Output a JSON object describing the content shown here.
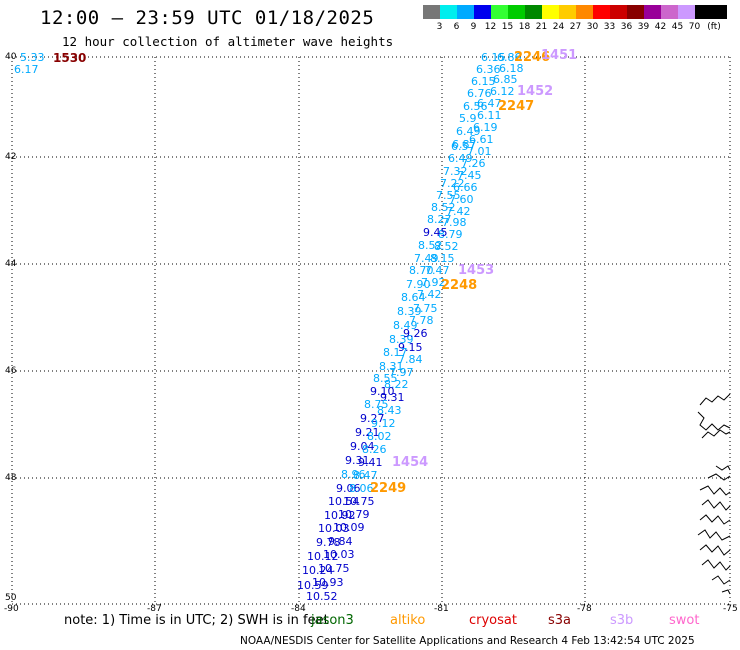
{
  "header": {
    "title": "12:00 — 23:59 UTC 01/18/2025",
    "subtitle": "12 hour collection of altimeter wave heights"
  },
  "color_scale": {
    "colors": [
      "#777777",
      "#00eeee",
      "#00aaff",
      "#0000ee",
      "#33ff33",
      "#00cc00",
      "#008800",
      "#ffff00",
      "#ffcc00",
      "#ff8800",
      "#ff0000",
      "#cc0000",
      "#880000",
      "#990099",
      "#cc66cc",
      "#cc99ff",
      "#000000"
    ],
    "labels": [
      "3",
      "6",
      "9",
      "12",
      "15",
      "18",
      "21",
      "24",
      "27",
      "30",
      "33",
      "36",
      "39",
      "42",
      "45",
      "70",
      "(ft)"
    ]
  },
  "axes": {
    "lat_labels": [
      "40",
      "42",
      "44",
      "46",
      "48",
      "50"
    ],
    "lon_labels": [
      "-90",
      "-87",
      "-84",
      "-81",
      "-78",
      "-75"
    ]
  },
  "note": "note:  1) Time is in UTC; 2) SWH is in feet",
  "satellites": [
    {
      "name": "jason3",
      "color": "#006600"
    },
    {
      "name": "altiko",
      "color": "#ff9900"
    },
    {
      "name": "cryosat",
      "color": "#dd0000"
    },
    {
      "name": "s3a",
      "color": "#880000"
    },
    {
      "name": "s3b",
      "color": "#cc99ff"
    },
    {
      "name": "swot",
      "color": "#ff66cc"
    }
  ],
  "credit": "NOAA/NESDIS Center for Satellite Applications and Research    4 Feb 13:42:54 UTC 2025",
  "time_labels": [
    {
      "text": "1530",
      "color": "#880000"
    },
    {
      "text": "2246",
      "color": "#ff9900"
    },
    {
      "text": "1451",
      "color": "#cc99ff"
    },
    {
      "text": "1452",
      "color": "#cc99ff"
    },
    {
      "text": "2247",
      "color": "#ff9900"
    },
    {
      "text": "1453",
      "color": "#cc99ff"
    },
    {
      "text": "2248",
      "color": "#ff9900"
    },
    {
      "text": "1454",
      "color": "#cc99ff"
    },
    {
      "text": "2249",
      "color": "#ff9900"
    }
  ],
  "wave_values_cyan": [
    "5.33",
    "6.17",
    "6.15",
    "6.86",
    "6.36",
    "6.18",
    "6.15",
    "6.85",
    "6.76",
    "6.12",
    "6.47",
    "6.56",
    "6.11",
    "5.9",
    "6.19",
    "6.49",
    "6.87",
    "6.61",
    "6.57",
    "7.01",
    "6.49",
    "7.26",
    "7.45",
    "7.32",
    "6.66",
    "7.22",
    "7.60",
    "7.55",
    "7.42",
    "8.52",
    "7.98",
    "8.27",
    "8.79",
    "8.52",
    "8.52",
    "7.49",
    "8.15",
    "8.70",
    "7.47",
    "7.90",
    "7.92",
    "8.64",
    "7.42",
    "8.39",
    "7.75",
    "8.49",
    "7.78",
    "8.39",
    "8.17",
    "7.84",
    "8.31",
    "7.97",
    "8.55",
    "8.22",
    "8.75",
    "8.43",
    "9.12",
    "8.02",
    "8.26",
    "8.96",
    "8.47",
    "8.06"
  ],
  "wave_values_blue": [
    "9.45",
    "9.10",
    "9.26",
    "9.15",
    "9.31",
    "9.27",
    "9.21",
    "9.04",
    "9.31",
    "9.41",
    "9.06",
    "10.54",
    "10.75",
    "10.92",
    "10.79",
    "10.03",
    "10.09",
    "9.78",
    "9.84",
    "10.12",
    "10.03",
    "10.24",
    "10.75",
    "10.93",
    "10.59",
    "10.52"
  ]
}
